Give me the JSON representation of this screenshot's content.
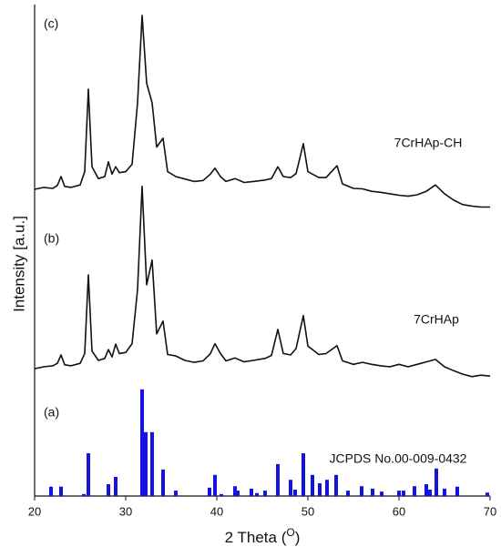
{
  "chart_data": {
    "type": "line",
    "x_label": {
      "text": "2 Theta (",
      "superscript": "O",
      "close": ")"
    },
    "y_label": "Intensity [a.u.]",
    "xlim": [
      20,
      70
    ],
    "xticks": [
      20,
      30,
      40,
      50,
      60,
      70
    ],
    "ylim": [
      0,
      100
    ],
    "x": [
      20,
      21,
      22,
      22.5,
      22.9,
      23.3,
      24,
      25,
      25.5,
      25.9,
      26.3,
      27,
      27.7,
      28.1,
      28.5,
      28.9,
      29.3,
      30,
      30.7,
      31.3,
      31.8,
      32.3,
      32.9,
      33.4,
      34.1,
      34.6,
      35.5,
      36.5,
      37.5,
      38.5,
      39.3,
      39.8,
      40.4,
      41,
      42,
      43,
      44,
      45.3,
      46,
      46.7,
      47.3,
      48.1,
      48.7,
      49.5,
      50,
      50.5,
      51.2,
      52,
      53.2,
      53.8,
      55,
      56,
      57,
      58,
      59,
      60,
      61,
      62,
      63,
      64,
      65,
      66,
      67,
      68,
      69,
      70
    ],
    "series": [
      {
        "name": "7CrHAp-CH",
        "label": "(c)",
        "type": "line",
        "color": "#111111",
        "values": [
          62.4,
          62.8,
          62.6,
          63.2,
          65.0,
          63.0,
          62.8,
          63.3,
          66.0,
          82.8,
          67.0,
          64.6,
          65.0,
          68.0,
          65.5,
          67.0,
          65.8,
          66.0,
          67.5,
          80.0,
          97.8,
          84.0,
          80.0,
          71.0,
          72.8,
          66.0,
          65.0,
          64.5,
          64.0,
          64.2,
          65.5,
          66.7,
          65.0,
          64.0,
          64.6,
          63.8,
          64.0,
          64.3,
          64.6,
          67.0,
          65.0,
          64.8,
          65.6,
          71.7,
          66.0,
          65.5,
          64.8,
          64.8,
          67.2,
          63.5,
          62.6,
          62.5,
          62.0,
          61.8,
          61.5,
          61.2,
          61.0,
          61.3,
          62.0,
          63.3,
          61.5,
          60.2,
          59.3,
          59.0,
          58.8,
          58.8
        ]
      },
      {
        "name": "7CrHAp",
        "label": "(b)",
        "type": "line",
        "color": "#111111",
        "values": [
          25.9,
          26.3,
          26.5,
          27.0,
          28.7,
          26.7,
          26.5,
          27.0,
          29.0,
          45.0,
          29.5,
          27.6,
          28.0,
          29.8,
          28.3,
          30.9,
          29.0,
          29.2,
          31.0,
          42.0,
          63.0,
          43.0,
          48.0,
          33.0,
          35.6,
          28.8,
          28.5,
          27.6,
          27.2,
          27.5,
          29.0,
          31.0,
          29.0,
          27.5,
          28.1,
          27.3,
          27.6,
          28.0,
          28.6,
          33.9,
          29.0,
          28.7,
          30.0,
          36.7,
          30.5,
          29.8,
          28.8,
          29.0,
          30.6,
          27.5,
          26.8,
          27.2,
          26.8,
          26.5,
          26.3,
          26.8,
          26.3,
          26.8,
          27.3,
          27.8,
          26.3,
          25.5,
          24.8,
          24.3,
          24.6,
          24.4
        ]
      },
      {
        "name": "JCPDS No.00-009-0432",
        "label": "(a)",
        "type": "bar",
        "color": "#1414e0",
        "x": [
          21.8,
          22.9,
          25.4,
          25.9,
          28.1,
          28.9,
          31.8,
          32.2,
          32.9,
          34.1,
          35.5,
          39.2,
          39.8,
          40.5,
          42.0,
          42.3,
          43.8,
          44.4,
          45.3,
          46.7,
          48.1,
          48.6,
          49.5,
          50.5,
          51.3,
          52.1,
          53.1,
          54.4,
          55.9,
          57.1,
          58.1,
          60.0,
          60.5,
          61.7,
          63.0,
          63.4,
          64.1,
          65.0,
          66.4,
          69.7
        ],
        "values": [
          1.9,
          1.9,
          0.4,
          8.7,
          2.4,
          3.9,
          21.7,
          13,
          13,
          5.4,
          1.1,
          1.7,
          4.3,
          0.4,
          2,
          1.1,
          1.5,
          0.6,
          1.1,
          6.5,
          3.3,
          1.3,
          8.7,
          4.3,
          2.6,
          3.3,
          4.3,
          1.1,
          2,
          1.5,
          0.9,
          1.1,
          1.1,
          2,
          2.4,
          1.3,
          5.6,
          1.5,
          1.9,
          0.7
        ]
      }
    ]
  }
}
